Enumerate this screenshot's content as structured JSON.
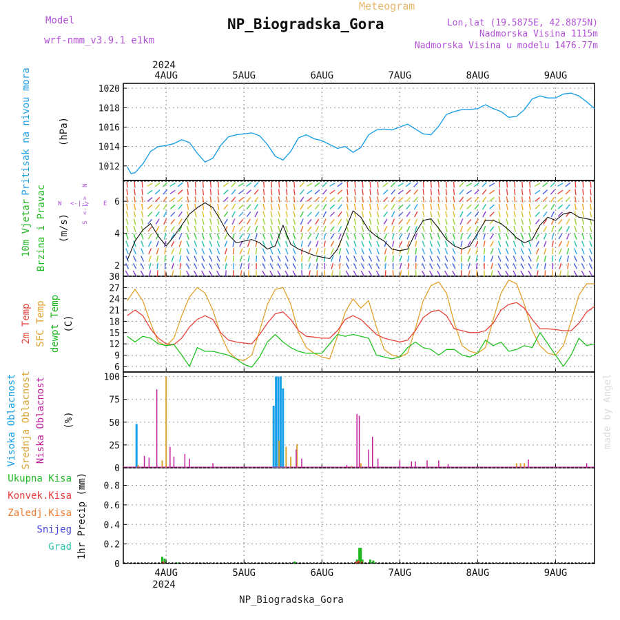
{
  "header": {
    "model_label": "Model",
    "model_name": "wrf-nmm_v3.9.1  e1km",
    "meteogram_label": "Meteogram",
    "station_title": "NP_Biogradska_Gora",
    "coords": "Lon,lat (19.5875E, 42.8875N)",
    "elevation": "Nadmorska Visina 1115m",
    "model_elevation": "Nadmorska Visina u modelu 1476.77m",
    "footer_station": "NP_Biogradska_Gora",
    "watermark": "made by Angel"
  },
  "time_axis": {
    "year": "2024",
    "days": [
      "4AUG",
      "5AUG",
      "6AUG",
      "7AUG",
      "8AUG",
      "9AUG"
    ]
  },
  "panels": {
    "pressure": {
      "label1": "Pritisak na nivou mora",
      "unit": "(hPa)",
      "ticks": [
        "1012",
        "1014",
        "1016",
        "1018",
        "1020"
      ]
    },
    "wind": {
      "label1": "10m Vjetar",
      "label2": "Brzina i Pravac",
      "unit": "(m/s)",
      "ticks": [
        "2",
        "4",
        "6"
      ],
      "compass": [
        "W",
        "<-|->",
        "E",
        "S",
        "<-|->",
        "N"
      ]
    },
    "temperature": {
      "label1": "2m Temp",
      "label2": "SFC Temp",
      "label3": "dewpt Temp",
      "unit": "(C)",
      "ticks": [
        "6",
        "9",
        "12",
        "15",
        "18",
        "21",
        "24",
        "27",
        "30"
      ]
    },
    "cloud": {
      "label1": "Visoka Oblacnost",
      "label2": "Srednja Oblacnost",
      "label3": "Niska Oblacnost",
      "unit": "(%)",
      "ticks": [
        "0",
        "25",
        "50",
        "75",
        "100"
      ]
    },
    "precip": {
      "legend": [
        "Ukupna Kisa",
        "Konvek.Kisa",
        "Zaledj.Kisa",
        "Snijeg",
        "Grad"
      ],
      "ylabel": "1hr Precip (mm)",
      "ticks": [
        "0",
        "0.2",
        "0.4",
        "0.6",
        "0.8"
      ]
    }
  },
  "colors": {
    "pressure": "#1ea0e6",
    "t2m": "#e8433a",
    "sfc": "#e2a22e",
    "dewpt": "#22c322",
    "high_cloud": "#18a0e8",
    "mid_cloud": "#d9a531",
    "low_cloud": "#c21f9c",
    "ukupna": "#20b820",
    "konvek": "#e83b3b",
    "zaledj": "#ef7d2d",
    "snijeg": "#4646dc",
    "grad": "#2fc4b0",
    "model": "#b151d6",
    "meteogram": "#e8b86a"
  },
  "chart_data": [
    {
      "type": "line",
      "title": "Pritisak na nivou mora",
      "ylabel": "(hPa)",
      "ylim": [
        1010.5,
        1020.5
      ],
      "grid": true,
      "x_unit": "days since 4AUG 00Z",
      "series": [
        {
          "name": "Pritisak na nivou mora",
          "x": [
            -0.5,
            -0.45,
            -0.4,
            -0.3,
            -0.2,
            -0.1,
            0,
            0.1,
            0.2,
            0.3,
            0.4,
            0.5,
            0.6,
            0.7,
            0.8,
            0.9,
            1.0,
            1.1,
            1.2,
            1.3,
            1.4,
            1.5,
            1.6,
            1.7,
            1.8,
            1.9,
            2.0,
            2.1,
            2.2,
            2.3,
            2.4,
            2.5,
            2.6,
            2.7,
            2.8,
            2.9,
            3.0,
            3.1,
            3.2,
            3.3,
            3.4,
            3.5,
            3.6,
            3.7,
            3.8,
            3.9,
            4.0,
            4.1,
            4.2,
            4.3,
            4.4,
            4.5,
            4.6,
            4.7,
            4.8,
            4.9,
            5.0,
            5.1,
            5.2,
            5.3,
            5.4,
            5.5
          ],
          "values": [
            1011.9,
            1011.2,
            1011.3,
            1012.2,
            1013.5,
            1014.0,
            1014.1,
            1014.3,
            1014.7,
            1014.4,
            1013.3,
            1012.4,
            1012.8,
            1014.1,
            1015.0,
            1015.2,
            1015.3,
            1015.4,
            1015.1,
            1014.2,
            1013.0,
            1012.6,
            1013.5,
            1014.9,
            1015.2,
            1014.8,
            1014.6,
            1014.2,
            1013.8,
            1014.0,
            1013.4,
            1013.9,
            1015.2,
            1015.7,
            1015.8,
            1015.7,
            1016.0,
            1016.3,
            1015.8,
            1015.3,
            1015.2,
            1016.1,
            1017.3,
            1017.6,
            1017.8,
            1017.8,
            1017.9,
            1018.3,
            1017.9,
            1017.6,
            1017.0,
            1017.1,
            1017.8,
            1018.9,
            1019.2,
            1019.0,
            1019.0,
            1019.4,
            1019.5,
            1019.2,
            1018.6,
            1017.9
          ]
        }
      ]
    },
    {
      "type": "line",
      "title": "10m Vjetar Brzina i Pravac",
      "ylabel": "(m/s)",
      "ylim": [
        1.3,
        7.3
      ],
      "grid": true,
      "x_unit": "days since 4AUG 00Z",
      "series": [
        {
          "name": "10m Vjetar",
          "x": [
            -0.5,
            -0.4,
            -0.3,
            -0.2,
            -0.1,
            0,
            0.1,
            0.2,
            0.3,
            0.4,
            0.5,
            0.6,
            0.7,
            0.8,
            0.9,
            1.0,
            1.1,
            1.2,
            1.3,
            1.4,
            1.5,
            1.6,
            1.7,
            1.8,
            1.9,
            2.0,
            2.1,
            2.2,
            2.3,
            2.4,
            2.5,
            2.6,
            2.7,
            2.8,
            2.9,
            3.0,
            3.1,
            3.2,
            3.3,
            3.4,
            3.5,
            3.6,
            3.7,
            3.8,
            3.9,
            4.0,
            4.1,
            4.2,
            4.3,
            4.4,
            4.5,
            4.6,
            4.7,
            4.8,
            4.9,
            5.0,
            5.1,
            5.2,
            5.3,
            5.4,
            5.5
          ],
          "values": [
            2.3,
            3.5,
            4.2,
            4.6,
            3.8,
            3.2,
            3.8,
            4.5,
            5.2,
            5.6,
            5.9,
            5.6,
            4.8,
            3.9,
            3.4,
            3.5,
            3.6,
            3.4,
            3.0,
            3.2,
            4.5,
            3.3,
            3.0,
            2.8,
            2.6,
            2.5,
            2.4,
            3.0,
            4.2,
            5.4,
            5.0,
            4.2,
            3.8,
            3.5,
            3.0,
            2.9,
            3.0,
            4.0,
            4.8,
            4.9,
            4.3,
            3.6,
            3.2,
            3.0,
            3.2,
            4.0,
            4.8,
            4.8,
            4.6,
            4.2,
            3.7,
            3.4,
            3.6,
            4.5,
            5.0,
            4.8,
            5.2,
            5.3,
            5.0,
            4.9,
            4.8
          ]
        }
      ]
    },
    {
      "type": "line",
      "title": "Temperature",
      "ylabel": "(C)",
      "ylim": [
        4.5,
        30
      ],
      "grid": true,
      "x_unit": "days since 4AUG 00Z",
      "series": [
        {
          "name": "2m Temp",
          "x": [
            -0.5,
            -0.4,
            -0.3,
            -0.2,
            -0.1,
            0,
            0.1,
            0.2,
            0.3,
            0.4,
            0.5,
            0.6,
            0.7,
            0.8,
            0.9,
            1.0,
            1.1,
            1.2,
            1.3,
            1.4,
            1.5,
            1.6,
            1.7,
            1.8,
            1.9,
            2.0,
            2.1,
            2.2,
            2.3,
            2.4,
            2.5,
            2.6,
            2.7,
            2.8,
            2.9,
            3.0,
            3.1,
            3.2,
            3.3,
            3.4,
            3.5,
            3.6,
            3.7,
            3.8,
            3.9,
            4.0,
            4.1,
            4.2,
            4.3,
            4.4,
            4.5,
            4.6,
            4.7,
            4.8,
            4.9,
            5.0,
            5.1,
            5.2,
            5.3,
            5.4,
            5.5
          ],
          "values": [
            19.5,
            21.0,
            19.5,
            16.0,
            13.5,
            12.0,
            11.8,
            13.5,
            16.5,
            18.5,
            19.5,
            18.5,
            15.0,
            13.0,
            12.5,
            12.2,
            12.0,
            14.5,
            17.5,
            20.0,
            20.5,
            18.5,
            15.5,
            14.0,
            13.8,
            13.5,
            13.5,
            15.5,
            18.5,
            19.5,
            18.5,
            16.5,
            14.5,
            13.5,
            13.0,
            12.5,
            13.0,
            15.5,
            19.0,
            20.5,
            21.0,
            19.5,
            16.0,
            15.5,
            15.0,
            15.0,
            15.5,
            17.5,
            21.0,
            22.5,
            23.0,
            21.5,
            18.5,
            16.0,
            16.0,
            15.8,
            15.5,
            15.5,
            17.5,
            20.5,
            22.0
          ]
        },
        {
          "name": "SFC Temp",
          "x": [
            -0.5,
            -0.4,
            -0.3,
            -0.2,
            -0.1,
            0,
            0.1,
            0.2,
            0.3,
            0.4,
            0.5,
            0.6,
            0.7,
            0.8,
            0.9,
            1.0,
            1.1,
            1.2,
            1.3,
            1.4,
            1.5,
            1.6,
            1.7,
            1.8,
            1.9,
            2.0,
            2.1,
            2.2,
            2.3,
            2.4,
            2.5,
            2.6,
            2.7,
            2.8,
            2.9,
            3.0,
            3.1,
            3.2,
            3.3,
            3.4,
            3.5,
            3.6,
            3.7,
            3.8,
            3.9,
            4.0,
            4.1,
            4.2,
            4.3,
            4.4,
            4.5,
            4.6,
            4.7,
            4.8,
            4.9,
            5.0,
            5.1,
            5.2,
            5.3,
            5.4,
            5.5
          ],
          "values": [
            23.5,
            26.5,
            23.5,
            17.5,
            12.5,
            11.5,
            13.5,
            19.5,
            24.5,
            27.0,
            25.5,
            21.0,
            14.5,
            10.0,
            8.0,
            7.5,
            9.0,
            15.5,
            22.5,
            26.5,
            27.0,
            22.5,
            15.0,
            11.0,
            9.5,
            8.5,
            8.0,
            14.0,
            20.5,
            24.0,
            21.5,
            23.5,
            16.5,
            10.5,
            9.0,
            8.5,
            9.5,
            16.0,
            23.5,
            27.5,
            28.5,
            25.5,
            17.5,
            11.5,
            10.0,
            9.5,
            11.0,
            18.5,
            25.5,
            29.0,
            28.0,
            22.5,
            15.5,
            11.5,
            9.5,
            9.0,
            11.5,
            18.0,
            25.0,
            28.0,
            28.0
          ]
        },
        {
          "name": "dewpt Temp",
          "x": [
            -0.5,
            -0.4,
            -0.3,
            -0.2,
            -0.1,
            0,
            0.1,
            0.2,
            0.3,
            0.4,
            0.5,
            0.6,
            0.7,
            0.8,
            0.9,
            1.0,
            1.1,
            1.2,
            1.3,
            1.4,
            1.5,
            1.6,
            1.7,
            1.8,
            1.9,
            2.0,
            2.1,
            2.2,
            2.3,
            2.4,
            2.5,
            2.6,
            2.7,
            2.8,
            2.9,
            3.0,
            3.1,
            3.2,
            3.3,
            3.4,
            3.5,
            3.6,
            3.7,
            3.8,
            3.9,
            4.0,
            4.1,
            4.2,
            4.3,
            4.4,
            4.5,
            4.6,
            4.7,
            4.8,
            4.9,
            5.0,
            5.1,
            5.2,
            5.3,
            5.4,
            5.5
          ],
          "values": [
            14.0,
            12.5,
            14.0,
            13.5,
            12.0,
            11.5,
            11.8,
            9.0,
            6.0,
            11.0,
            10.0,
            10.0,
            9.5,
            9.0,
            8.0,
            6.5,
            5.8,
            8.5,
            12.5,
            14.5,
            12.5,
            11.0,
            10.0,
            9.5,
            9.5,
            9.5,
            12.0,
            14.5,
            14.0,
            14.5,
            14.0,
            13.5,
            9.0,
            8.5,
            8.0,
            8.5,
            11.0,
            12.5,
            11.0,
            10.5,
            9.0,
            10.5,
            10.5,
            9.0,
            8.5,
            9.5,
            13.0,
            11.5,
            12.5,
            10.0,
            10.5,
            11.5,
            11.0,
            15.0,
            12.0,
            9.0,
            6.0,
            9.0,
            13.5,
            11.5,
            12.0
          ]
        }
      ]
    },
    {
      "type": "bar",
      "title": "Oblacnost",
      "ylabel": "(%)",
      "ylim": [
        0,
        105
      ],
      "grid": true,
      "x_unit": "days since 4AUG 00Z",
      "series": [
        {
          "name": "Visoka Oblacnost",
          "x": [
            -0.38,
            1.38,
            1.41,
            1.44,
            1.47,
            1.5
          ],
          "values": [
            48,
            68,
            100,
            100,
            100,
            87
          ]
        },
        {
          "name": "Srednja Oblacnost",
          "x": [
            -0.36,
            -0.05,
            0.0,
            1.45,
            1.54,
            1.6,
            1.68,
            2.38,
            2.5,
            4.5,
            4.55,
            4.6
          ],
          "values": [
            3,
            8,
            100,
            30,
            23,
            12,
            26,
            2,
            5,
            5,
            5,
            5
          ]
        },
        {
          "name": "Niska Oblacnost",
          "x": [
            -0.12,
            -0.28,
            -0.22,
            0.05,
            0.1,
            0.24,
            0.3,
            0.6,
            1.67,
            1.74,
            2.32,
            2.45,
            2.48,
            2.6,
            2.65,
            2.72,
            3.0,
            3.15,
            3.2,
            3.35,
            3.5,
            3.62,
            4.65,
            5.4
          ],
          "values": [
            86,
            13,
            11,
            23,
            12,
            15,
            10,
            5,
            20,
            10,
            3,
            59,
            57,
            20,
            34,
            10,
            8,
            7,
            7,
            8,
            8,
            4,
            9,
            5
          ]
        }
      ]
    },
    {
      "type": "bar",
      "title": "1hr Precip",
      "ylabel": "1hr Precip (mm)",
      "ylim": [
        0,
        0.98
      ],
      "grid": true,
      "x_unit": "days since 4AUG 00Z",
      "series": [
        {
          "name": "Ukupna Kisa",
          "x": [
            -0.05,
            -0.02,
            0.15,
            1.65,
            2.45,
            2.48,
            2.5,
            2.52,
            2.62,
            2.66
          ],
          "values": [
            0.07,
            0.05,
            0.01,
            0.02,
            0.04,
            0.16,
            0.16,
            0.04,
            0.04,
            0.03
          ]
        },
        {
          "name": "Konvek.Kisa",
          "x": [
            -0.04,
            2.44,
            2.47,
            2.51
          ],
          "values": [
            0.02,
            0.02,
            0.03,
            0.02
          ]
        },
        {
          "name": "Zaledj.Kisa",
          "x": [],
          "values": []
        },
        {
          "name": "Snijeg",
          "x": [],
          "values": []
        },
        {
          "name": "Grad",
          "x": [],
          "values": []
        }
      ]
    }
  ]
}
